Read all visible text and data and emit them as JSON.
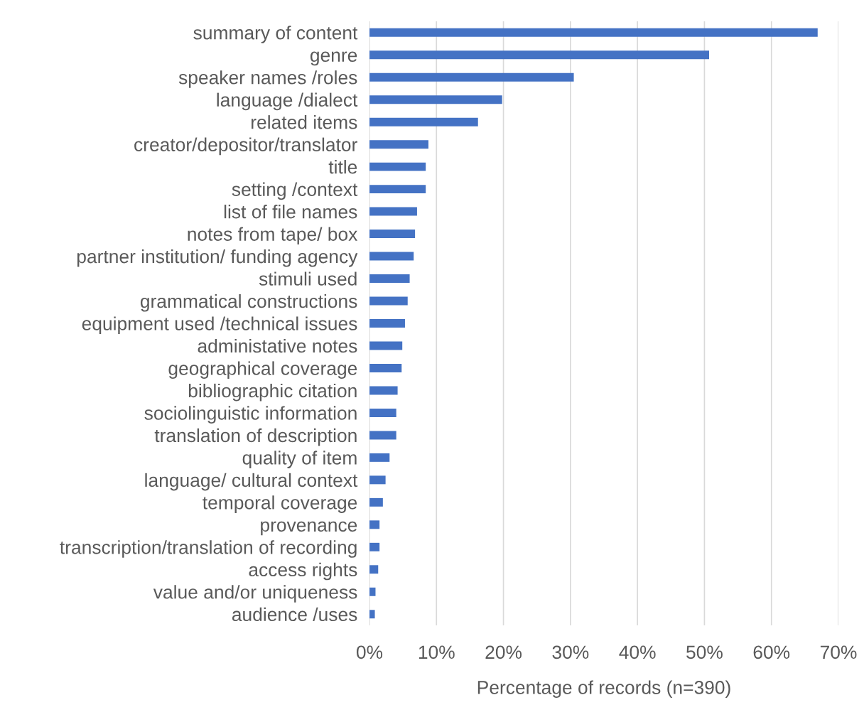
{
  "chart_data": {
    "type": "bar",
    "orientation": "horizontal",
    "xlabel": "Percentage of records (n=390)",
    "categories": [
      "summary of content",
      "genre",
      "speaker names /roles",
      "language /dialect",
      "related items",
      "creator/depositor/translator",
      "title",
      "setting /context",
      "list of file names",
      "notes from tape/ box",
      "partner institution/ funding agency",
      "stimuli used",
      "grammatical constructions",
      "equipment used /technical issues",
      "administative notes",
      "geographical coverage",
      "bibliographic citation",
      "sociolinguistic information",
      "translation of description",
      "quality of item",
      "language/ cultural context",
      "temporal coverage",
      "provenance",
      "transcription/translation of recording",
      "access rights",
      "value and/or uniqueness",
      "audience /uses"
    ],
    "values": [
      66.9,
      50.7,
      30.5,
      19.8,
      16.2,
      8.8,
      8.4,
      8.4,
      7.1,
      6.8,
      6.6,
      6.0,
      5.7,
      5.3,
      4.9,
      4.8,
      4.2,
      4.0,
      4.0,
      3.0,
      2.4,
      2.0,
      1.5,
      1.5,
      1.3,
      0.9,
      0.8
    ],
    "color": "#4472c4",
    "xlim": [
      0,
      70
    ],
    "xticks": [
      {
        "value": 0,
        "label": "0%"
      },
      {
        "value": 10,
        "label": "10%"
      },
      {
        "value": 20,
        "label": "20%"
      },
      {
        "value": 30,
        "label": "30%"
      },
      {
        "value": 40,
        "label": "40%"
      },
      {
        "value": 50,
        "label": "50%"
      },
      {
        "value": 60,
        "label": "60%"
      },
      {
        "value": 70,
        "label": "70%"
      }
    ],
    "grid": "x",
    "legend": false
  }
}
